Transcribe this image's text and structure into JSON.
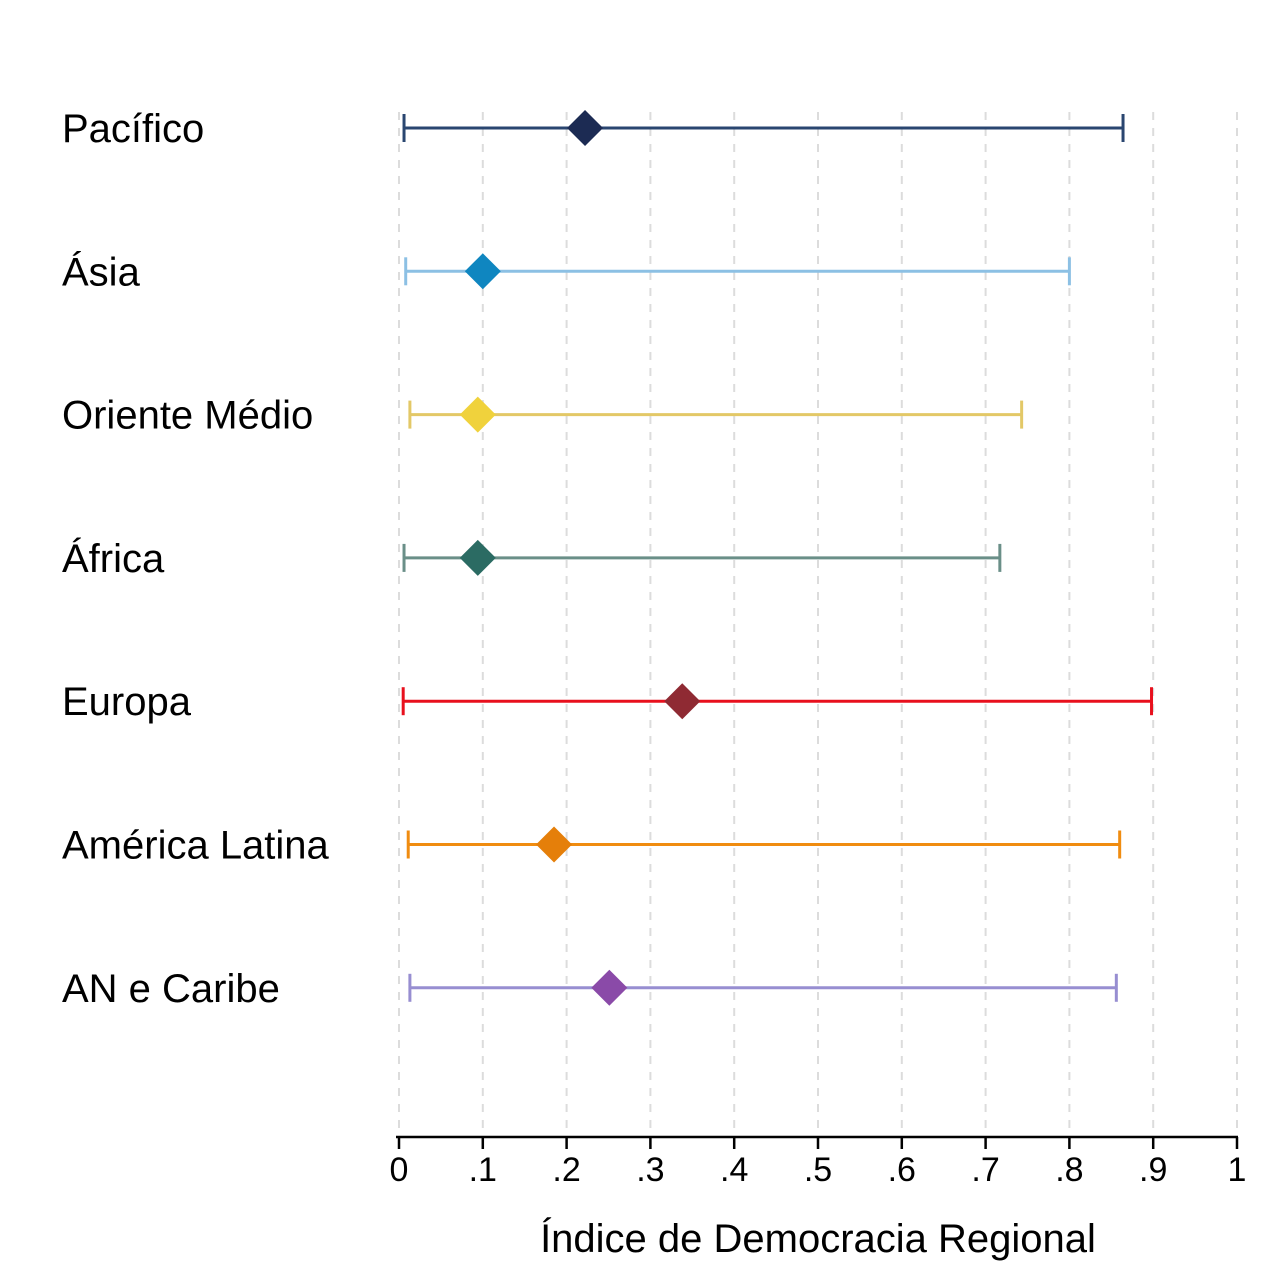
{
  "chart_data": {
    "type": "dot-range",
    "orientation": "horizontal",
    "xlabel": "Índice de Democracia Regional",
    "xlim": [
      0,
      1
    ],
    "xticks": [
      0,
      0.1,
      0.2,
      0.3,
      0.4,
      0.5,
      0.6,
      0.7,
      0.8,
      0.9,
      1
    ],
    "xtick_labels": [
      "0",
      ".1",
      ".2",
      ".3",
      ".4",
      ".5",
      ".6",
      ".7",
      ".8",
      ".9",
      "1"
    ],
    "grid": "vertical-dashed",
    "legend": "none",
    "categories": [
      "Pacífico",
      "Ásia",
      "Oriente Médio",
      "África",
      "Europa",
      "América Latina",
      "AN e Caribe"
    ],
    "series": [
      {
        "category": "Pacífico",
        "min": 0.006,
        "mean": 0.222,
        "max": 0.864,
        "line_color": "#2a4670",
        "marker_color": "#1c2b53"
      },
      {
        "category": "Ásia",
        "min": 0.008,
        "mean": 0.1,
        "max": 0.8,
        "line_color": "#8cc0e4",
        "marker_color": "#0f86c0"
      },
      {
        "category": "Oriente Médio",
        "min": 0.013,
        "mean": 0.094,
        "max": 0.743,
        "line_color": "#e3c867",
        "marker_color": "#f0d23c"
      },
      {
        "category": "África",
        "min": 0.006,
        "mean": 0.094,
        "max": 0.717,
        "line_color": "#6a8f88",
        "marker_color": "#2b6b63"
      },
      {
        "category": "Europa",
        "min": 0.005,
        "mean": 0.338,
        "max": 0.898,
        "line_color": "#e8101d",
        "marker_color": "#8f2a33"
      },
      {
        "category": "América Latina",
        "min": 0.011,
        "mean": 0.185,
        "max": 0.86,
        "line_color": "#f08c10",
        "marker_color": "#e57f0a"
      },
      {
        "category": "AN e Caribe",
        "min": 0.013,
        "mean": 0.251,
        "max": 0.856,
        "line_color": "#978ed1",
        "marker_color": "#8a4aa8"
      }
    ]
  }
}
